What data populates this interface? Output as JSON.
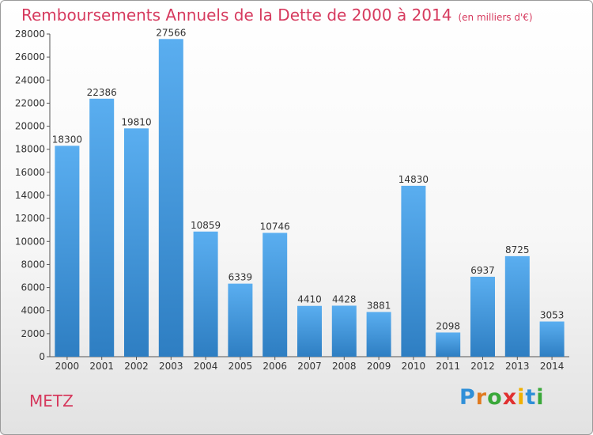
{
  "title": "Remboursements Annuels de la Dette de 2000 à 2014",
  "unit": "(en milliers d'€)",
  "city": "METZ",
  "logo": {
    "letters": [
      "P",
      "r",
      "o",
      "x",
      "i",
      "t",
      "i"
    ],
    "colors": [
      "#2f8fd8",
      "#e07a20",
      "#3aa83a",
      "#e03030",
      "#f0b000",
      "#2f8fd8",
      "#3aa83a"
    ]
  },
  "colors": {
    "title": "#d63a5e",
    "bar_light": "#5aaef0",
    "bar_dark": "#2e7ec2"
  },
  "chart_data": {
    "type": "bar",
    "categories": [
      "2000",
      "2001",
      "2002",
      "2003",
      "2004",
      "2005",
      "2006",
      "2007",
      "2008",
      "2009",
      "2010",
      "2011",
      "2012",
      "2013",
      "2014"
    ],
    "values": [
      18300,
      22386,
      19810,
      27566,
      10859,
      6339,
      10746,
      4410,
      4428,
      3881,
      14830,
      2098,
      6937,
      8725,
      3053
    ],
    "title": "Remboursements Annuels de la Dette de 2000 à 2014",
    "xlabel": "",
    "ylabel": "",
    "ylim": [
      0,
      28000
    ],
    "yticks": [
      0,
      2000,
      4000,
      6000,
      8000,
      10000,
      12000,
      14000,
      16000,
      18000,
      20000,
      22000,
      24000,
      26000,
      28000
    ],
    "grid": false,
    "legend": "none"
  }
}
